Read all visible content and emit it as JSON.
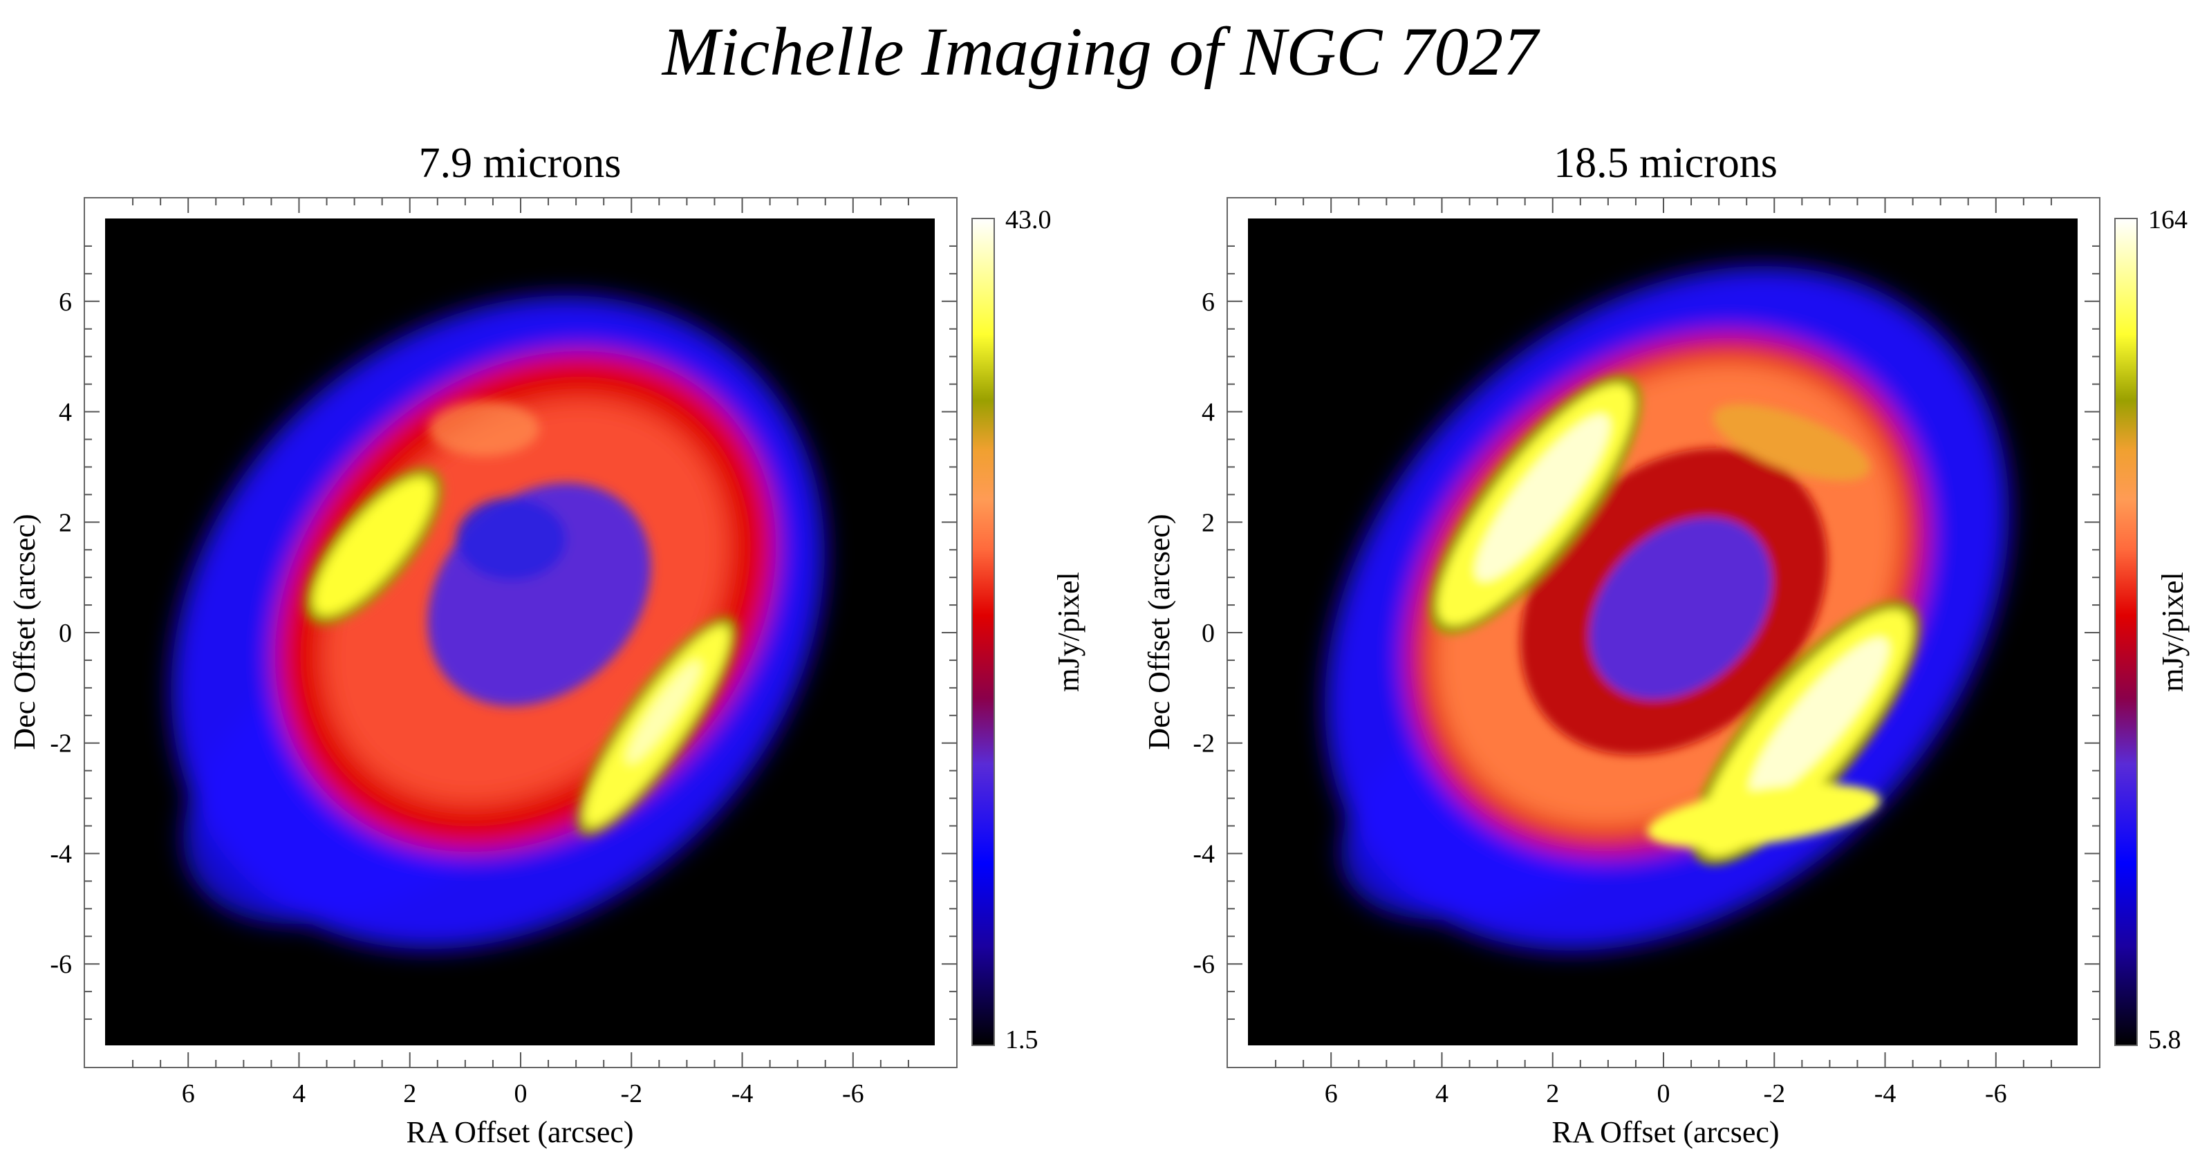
{
  "figure": {
    "title": "Michelle Imaging of NGC 7027",
    "colors": {
      "background": "#ffffff",
      "image_background": "#000000",
      "axis": "#000000"
    },
    "colormap": [
      "#000000",
      "#1a00a0",
      "#0000ff",
      "#5a2bd6",
      "#8a004a",
      "#e00000",
      "#ff6a3c",
      "#ff9b55",
      "#f0a030",
      "#9aa000",
      "#ffff30",
      "#ffffff"
    ],
    "panels": [
      {
        "title": "7.9 microns",
        "xlabel": "RA Offset (arcsec)",
        "ylabel": "Dec Offset (arcsec)",
        "colorbar": {
          "label": "mJy/pixel",
          "max_label": "43.0",
          "min_label": "1.5",
          "max": 43.0,
          "min": 1.5
        },
        "x_ticks": [
          "6",
          "4",
          "2",
          "0",
          "-2",
          "-4",
          "-6"
        ],
        "y_ticks": [
          "6",
          "4",
          "2",
          "0",
          "-2",
          "-4",
          "-6"
        ],
        "xlim": [
          7.5,
          -7.5
        ],
        "ylim": [
          -7.5,
          7.5
        ]
      },
      {
        "title": "18.5 microns",
        "xlabel": "RA Offset (arcsec)",
        "ylabel": "Dec Offset (arcsec)",
        "colorbar": {
          "label": "mJy/pixel",
          "max_label": "164",
          "min_label": "5.8",
          "max": 164,
          "min": 5.8
        },
        "x_ticks": [
          "6",
          "4",
          "2",
          "0",
          "-2",
          "-4",
          "-6"
        ],
        "y_ticks": [
          "6",
          "4",
          "2",
          "0",
          "-2",
          "-4",
          "-6"
        ],
        "xlim": [
          7.5,
          -7.5
        ],
        "ylim": [
          -7.5,
          7.5
        ]
      }
    ]
  }
}
